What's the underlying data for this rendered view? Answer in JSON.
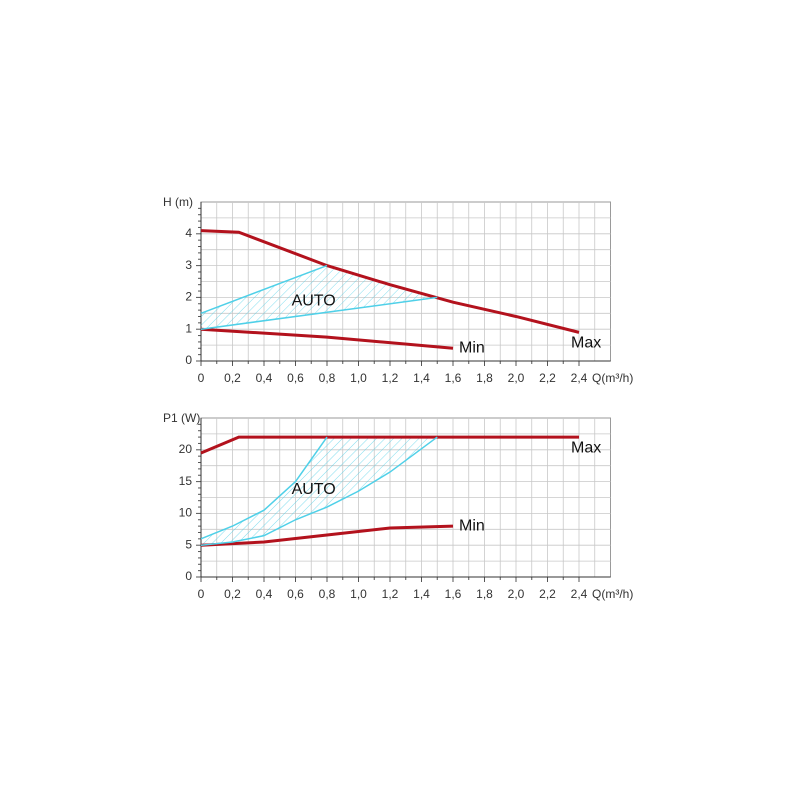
{
  "chart_data": [
    {
      "type": "line",
      "y_label": "H (m)",
      "x_label": "Q(m³/h)",
      "annotation": "AUTO",
      "xlim": [
        0,
        2.6
      ],
      "ylim": [
        0,
        5
      ],
      "grid": true,
      "xticks": [
        0,
        {
          "value": 0.2,
          "label": "0,2"
        },
        {
          "value": 0.4,
          "label": "0,4"
        },
        {
          "value": 0.6,
          "label": "0,6"
        },
        {
          "value": 0.8,
          "label": "0,8"
        },
        {
          "value": 1.0,
          "label": "1,0"
        },
        {
          "value": 1.2,
          "label": "1,2"
        },
        {
          "value": 1.4,
          "label": "1,4"
        },
        {
          "value": 1.6,
          "label": "1,6"
        },
        {
          "value": 1.8,
          "label": "1,8"
        },
        {
          "value": 2.0,
          "label": "2,0"
        },
        {
          "value": 2.2,
          "label": "2,2"
        },
        {
          "value": 2.4,
          "label": "2,4"
        }
      ],
      "yticks": [
        0,
        1,
        2,
        3,
        4
      ],
      "series": [
        {
          "name": "Max",
          "color": "#b3121d",
          "x": [
            0,
            0.24,
            0.8,
            1.2,
            1.6,
            2.0,
            2.4
          ],
          "values": [
            4.1,
            4.05,
            3.0,
            2.4,
            1.85,
            1.4,
            0.9
          ]
        },
        {
          "name": "Min",
          "color": "#b3121d",
          "x": [
            0,
            0.8,
            1.6
          ],
          "values": [
            1.0,
            0.75,
            0.4
          ]
        },
        {
          "color": "#4fd0e8",
          "x": [
            0,
            0.8
          ],
          "values": [
            1.5,
            3.0
          ]
        },
        {
          "color": "#4fd0e8",
          "x": [
            0,
            1.5
          ],
          "values": [
            1.0,
            2.0
          ]
        }
      ]
    },
    {
      "type": "line",
      "y_label": "P1 (W)",
      "x_label": "Q(m³/h)",
      "annotation": "AUTO",
      "xlim": [
        0,
        2.6
      ],
      "ylim": [
        0,
        25
      ],
      "grid": true,
      "xticks": [
        0,
        {
          "value": 0.2,
          "label": "0,2"
        },
        {
          "value": 0.4,
          "label": "0,4"
        },
        {
          "value": 0.6,
          "label": "0,6"
        },
        {
          "value": 0.8,
          "label": "0,8"
        },
        {
          "value": 1.0,
          "label": "1,0"
        },
        {
          "value": 1.2,
          "label": "1,2"
        },
        {
          "value": 1.4,
          "label": "1,4"
        },
        {
          "value": 1.6,
          "label": "1,6"
        },
        {
          "value": 1.8,
          "label": "1,8"
        },
        {
          "value": 2.0,
          "label": "2,0"
        },
        {
          "value": 2.2,
          "label": "2,2"
        },
        {
          "value": 2.4,
          "label": "2,4"
        }
      ],
      "yticks": [
        0,
        5,
        10,
        15,
        20
      ],
      "series": [
        {
          "name": "Max",
          "color": "#b3121d",
          "x": [
            0,
            0.24,
            2.4
          ],
          "values": [
            19.5,
            22,
            22
          ]
        },
        {
          "name": "Min",
          "color": "#b3121d",
          "x": [
            0,
            0.4,
            0.8,
            1.2,
            1.6
          ],
          "values": [
            5,
            5.5,
            6.6,
            7.7,
            8
          ]
        },
        {
          "color": "#4fd0e8",
          "x": [
            0,
            0.2,
            0.4,
            0.6,
            0.8
          ],
          "values": [
            6,
            8,
            10.5,
            15,
            22
          ]
        },
        {
          "color": "#4fd0e8",
          "x": [
            0,
            0.2,
            0.4,
            0.6,
            0.8,
            1.0,
            1.2,
            1.5
          ],
          "values": [
            5,
            5.5,
            6.5,
            9,
            11,
            13.5,
            16.5,
            22
          ]
        }
      ]
    }
  ]
}
